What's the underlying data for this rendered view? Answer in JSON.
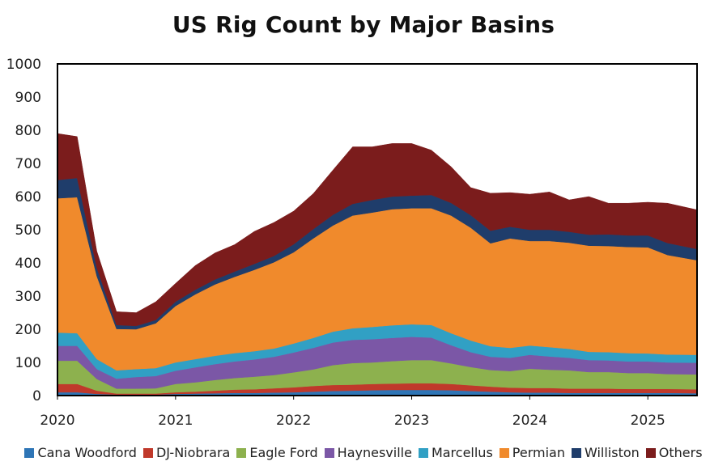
{
  "chart_data": {
    "type": "area",
    "stacked": true,
    "title": "US Rig Count by Major Basins",
    "xlabel": "",
    "ylabel": "",
    "ylim": [
      0,
      1000
    ],
    "yticks": [
      "0",
      "100",
      "200",
      "300",
      "400",
      "500",
      "600",
      "700",
      "800",
      "900",
      "1000"
    ],
    "xticks": [
      "2020",
      "2021",
      "2022",
      "2023",
      "2024",
      "2025"
    ],
    "x": [
      "2020-01",
      "2020-03",
      "2020-05",
      "2020-07",
      "2020-09",
      "2020-11",
      "2021-01",
      "2021-03",
      "2021-05",
      "2021-07",
      "2021-09",
      "2021-11",
      "2022-01",
      "2022-03",
      "2022-05",
      "2022-07",
      "2022-09",
      "2022-11",
      "2023-01",
      "2023-03",
      "2023-05",
      "2023-07",
      "2023-09",
      "2023-11",
      "2024-01",
      "2024-03",
      "2024-05",
      "2024-07",
      "2024-09",
      "2024-11",
      "2025-01",
      "2025-03",
      "2025-06"
    ],
    "legend_position": "bottom",
    "grid": false,
    "series": [
      {
        "name": "Cana Woodford",
        "color": "#2e75b6",
        "values": [
          10,
          10,
          5,
          3,
          3,
          3,
          5,
          6,
          7,
          8,
          8,
          9,
          10,
          12,
          14,
          15,
          16,
          17,
          17,
          17,
          16,
          14,
          12,
          10,
          9,
          9,
          8,
          8,
          8,
          8,
          8,
          8,
          7
        ]
      },
      {
        "name": "DJ-Niobrara",
        "color": "#c0392b",
        "values": [
          25,
          25,
          10,
          3,
          3,
          3,
          5,
          6,
          8,
          10,
          11,
          13,
          15,
          17,
          18,
          18,
          19,
          19,
          20,
          20,
          19,
          17,
          15,
          14,
          14,
          14,
          13,
          13,
          13,
          12,
          12,
          12,
          12
        ]
      },
      {
        "name": "Eagle Ford",
        "color": "#8db14e",
        "values": [
          70,
          70,
          35,
          15,
          15,
          16,
          25,
          28,
          32,
          35,
          38,
          40,
          45,
          50,
          60,
          65,
          65,
          68,
          70,
          70,
          62,
          55,
          50,
          50,
          58,
          55,
          55,
          50,
          50,
          48,
          48,
          45,
          45
        ]
      },
      {
        "name": "Haynesville",
        "color": "#7b57a6",
        "values": [
          45,
          45,
          30,
          30,
          35,
          37,
          40,
          45,
          48,
          50,
          52,
          55,
          60,
          65,
          68,
          70,
          70,
          70,
          70,
          68,
          55,
          45,
          40,
          40,
          42,
          40,
          38,
          36,
          35,
          35,
          35,
          35,
          35
        ]
      },
      {
        "name": "Marcellus",
        "color": "#31a0c4",
        "values": [
          40,
          38,
          30,
          25,
          24,
          24,
          25,
          25,
          25,
          25,
          25,
          25,
          27,
          30,
          33,
          35,
          37,
          38,
          38,
          38,
          36,
          35,
          32,
          30,
          28,
          28,
          27,
          25,
          25,
          25,
          24,
          24,
          24
        ]
      },
      {
        "name": "Permian",
        "color": "#f08a2c",
        "values": [
          405,
          410,
          250,
          125,
          120,
          135,
          170,
          195,
          215,
          230,
          245,
          260,
          275,
          300,
          320,
          340,
          345,
          350,
          350,
          352,
          355,
          340,
          310,
          330,
          315,
          320,
          320,
          320,
          320,
          320,
          320,
          300,
          285
        ]
      },
      {
        "name": "Williston",
        "color": "#1f3d6b",
        "values": [
          55,
          58,
          25,
          12,
          10,
          10,
          13,
          14,
          15,
          16,
          18,
          19,
          24,
          28,
          32,
          35,
          38,
          38,
          38,
          40,
          38,
          38,
          38,
          35,
          34,
          34,
          33,
          33,
          35,
          35,
          36,
          36,
          34
        ]
      },
      {
        "name": "Others",
        "color": "#7b1c1c",
        "values": [
          140,
          125,
          50,
          40,
          40,
          55,
          55,
          73,
          80,
          81,
          98,
          101,
          100,
          107,
          135,
          172,
          160,
          160,
          157,
          135,
          109,
          83,
          113,
          103,
          107,
          114,
          96,
          115,
          94,
          97,
          100,
          120,
          118
        ]
      }
    ]
  }
}
